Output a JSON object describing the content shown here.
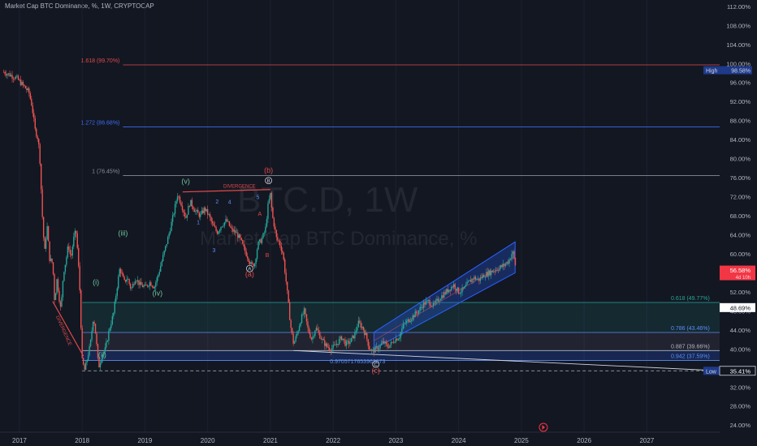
{
  "header": {
    "title": "Market Cap BTC Dominance, %, 1W, CRYPTOCAP"
  },
  "watermark": {
    "symbol": "BTC.D, 1W",
    "name": "Market Cap BTC Dominance, %"
  },
  "colors": {
    "background": "#131722",
    "up": "#26a69a",
    "down": "#ef5350",
    "blue": "#2962ff",
    "fib_red": "#e04a4a",
    "fib_blue": "#3c6ef0",
    "wave_green": "#6ec59a",
    "wave_blue": "#5b8ef5"
  },
  "chart_data": {
    "type": "candlestick",
    "symbol": "BTC.D",
    "interval": "1W",
    "ylim": [
      22.5,
      113
    ],
    "yticks": [
      24,
      28,
      32,
      36,
      40,
      44,
      48,
      52,
      56,
      60,
      64,
      68,
      72,
      76,
      80,
      84,
      88,
      92,
      96,
      100,
      104,
      108,
      112
    ],
    "xticks": [
      "2017",
      "2018",
      "2019",
      "2020",
      "2021",
      "2022",
      "2023",
      "2024",
      "2025",
      "2026",
      "2027"
    ],
    "price_path": [
      [
        2016.75,
        98.2
      ],
      [
        2016.95,
        97.0
      ],
      [
        2017.05,
        95.5
      ],
      [
        2017.15,
        94.0
      ],
      [
        2017.2,
        91.0
      ],
      [
        2017.25,
        86.0
      ],
      [
        2017.3,
        84.0
      ],
      [
        2017.33,
        79.0
      ],
      [
        2017.36,
        69.0
      ],
      [
        2017.4,
        60.0
      ],
      [
        2017.44,
        66.0
      ],
      [
        2017.48,
        59.0
      ],
      [
        2017.53,
        58.0
      ],
      [
        2017.56,
        50.0
      ],
      [
        2017.6,
        55.0
      ],
      [
        2017.62,
        52.0
      ],
      [
        2017.66,
        48.0
      ],
      [
        2017.7,
        56.0
      ],
      [
        2017.74,
        58.5
      ],
      [
        2017.78,
        62.0
      ],
      [
        2017.82,
        59.0
      ],
      [
        2017.86,
        63.0
      ],
      [
        2017.9,
        65.0
      ],
      [
        2017.93,
        60.0
      ],
      [
        2017.96,
        53.0
      ],
      [
        2018.0,
        37.5
      ],
      [
        2018.04,
        35.5
      ],
      [
        2018.08,
        38.0
      ],
      [
        2018.13,
        41.0
      ],
      [
        2018.18,
        47.0
      ],
      [
        2018.22,
        42.5
      ],
      [
        2018.26,
        36.0
      ],
      [
        2018.31,
        38.5
      ],
      [
        2018.37,
        40.0
      ],
      [
        2018.43,
        44.0
      ],
      [
        2018.5,
        47.5
      ],
      [
        2018.55,
        52.5
      ],
      [
        2018.6,
        57.0
      ],
      [
        2018.67,
        54.0
      ],
      [
        2018.72,
        55.0
      ],
      [
        2018.78,
        52.5
      ],
      [
        2018.85,
        55.0
      ],
      [
        2018.92,
        53.5
      ],
      [
        2019.0,
        53.0
      ],
      [
        2019.08,
        54.0
      ],
      [
        2019.15,
        53.0
      ],
      [
        2019.22,
        56.0
      ],
      [
        2019.3,
        60.0
      ],
      [
        2019.38,
        64.0
      ],
      [
        2019.45,
        68.0
      ],
      [
        2019.52,
        72.5
      ],
      [
        2019.58,
        70.5
      ],
      [
        2019.65,
        67.5
      ],
      [
        2019.72,
        71.0
      ],
      [
        2019.8,
        69.0
      ],
      [
        2019.88,
        68.0
      ],
      [
        2019.95,
        69.5
      ],
      [
        2020.02,
        68.0
      ],
      [
        2020.08,
        66.0
      ],
      [
        2020.15,
        64.5
      ],
      [
        2020.22,
        66.0
      ],
      [
        2020.3,
        67.0
      ],
      [
        2020.38,
        65.0
      ],
      [
        2020.45,
        64.5
      ],
      [
        2020.52,
        63.0
      ],
      [
        2020.58,
        61.0
      ],
      [
        2020.65,
        59.0
      ],
      [
        2020.7,
        57.5
      ],
      [
        2020.75,
        58.0
      ],
      [
        2020.8,
        62.0
      ],
      [
        2020.86,
        63.0
      ],
      [
        2020.92,
        65.0
      ],
      [
        2020.96,
        70.0
      ],
      [
        2021.0,
        72.5
      ],
      [
        2021.03,
        68.0
      ],
      [
        2021.06,
        66.0
      ],
      [
        2021.1,
        63.0
      ],
      [
        2021.14,
        62.5
      ],
      [
        2021.2,
        60.0
      ],
      [
        2021.26,
        53.0
      ],
      [
        2021.32,
        45.0
      ],
      [
        2021.37,
        41.0
      ],
      [
        2021.42,
        43.0
      ],
      [
        2021.48,
        46.0
      ],
      [
        2021.54,
        48.0
      ],
      [
        2021.6,
        44.0
      ],
      [
        2021.66,
        42.0
      ],
      [
        2021.72,
        44.5
      ],
      [
        2021.78,
        43.0
      ],
      [
        2021.84,
        41.5
      ],
      [
        2021.9,
        40.5
      ],
      [
        2021.96,
        40.0
      ],
      [
        2022.02,
        40.5
      ],
      [
        2022.08,
        41.5
      ],
      [
        2022.14,
        42.5
      ],
      [
        2022.2,
        41.0
      ],
      [
        2022.27,
        41.5
      ],
      [
        2022.34,
        43.0
      ],
      [
        2022.4,
        45.5
      ],
      [
        2022.47,
        44.5
      ],
      [
        2022.53,
        42.5
      ],
      [
        2022.58,
        40.0
      ],
      [
        2022.63,
        39.5
      ],
      [
        2022.68,
        40.0
      ],
      [
        2022.74,
        40.5
      ],
      [
        2022.8,
        41.5
      ],
      [
        2022.86,
        40.5
      ],
      [
        2022.92,
        41.0
      ],
      [
        2022.98,
        42.0
      ],
      [
        2023.05,
        42.5
      ],
      [
        2023.12,
        45.0
      ],
      [
        2023.2,
        46.0
      ],
      [
        2023.28,
        47.0
      ],
      [
        2023.36,
        48.0
      ],
      [
        2023.44,
        49.5
      ],
      [
        2023.52,
        50.0
      ],
      [
        2023.6,
        49.0
      ],
      [
        2023.68,
        50.5
      ],
      [
        2023.76,
        51.5
      ],
      [
        2023.84,
        52.5
      ],
      [
        2023.92,
        53.5
      ],
      [
        2024.0,
        52.0
      ],
      [
        2024.08,
        52.5
      ],
      [
        2024.16,
        54.0
      ],
      [
        2024.24,
        55.0
      ],
      [
        2024.32,
        54.5
      ],
      [
        2024.4,
        55.5
      ],
      [
        2024.48,
        56.0
      ],
      [
        2024.56,
        56.5
      ],
      [
        2024.64,
        57.0
      ],
      [
        2024.72,
        57.5
      ],
      [
        2024.8,
        58.5
      ],
      [
        2024.86,
        60.5
      ],
      [
        2024.9,
        58.0
      ],
      [
        2024.92,
        56.58
      ]
    ],
    "price_labels": [
      {
        "price": 56.58,
        "label": "56.58%",
        "sub": "4d 10h"
      },
      {
        "price": 48.69,
        "label": "48.69%"
      },
      {
        "price": 35.41,
        "label": "35.41%"
      }
    ],
    "high_low": [
      {
        "price": 98.58,
        "label": "High",
        "value": "98.58%"
      },
      {
        "price": 35.41,
        "label": "Low",
        "value": "35.41%"
      }
    ],
    "fib_levels": [
      {
        "price": 99.7,
        "label": "1.618 (99.70%)",
        "color": "#e04a4a",
        "x0": 2018.65
      },
      {
        "price": 86.68,
        "label": "1.272 (86.68%)",
        "color": "#3c6ef0",
        "x0": 2018.65
      },
      {
        "price": 76.45,
        "label": "1 (76.45%)",
        "color": "#8a8e99",
        "x0": 2018.65
      },
      {
        "price": 49.77,
        "label": "0.618 (49.77%)",
        "color": "#26a69a",
        "x0": 2018.0
      },
      {
        "price": 43.46,
        "label": "0.786 (43.46%)",
        "color": "#5b8ef5",
        "x0": 2018.0
      },
      {
        "price": 39.66,
        "label": "0.887 (39.66%)",
        "color": "#b2b5be",
        "x0": 2018.0
      },
      {
        "price": 37.59,
        "label": "0.942 (37.59%)",
        "color": "#5b8ef5",
        "x0": 2018.0
      }
    ],
    "channel": {
      "bottom": [
        [
          2022.65,
          40.0
        ],
        [
          2024.9,
          56.0
        ]
      ],
      "top": [
        [
          2022.65,
          43.5
        ],
        [
          2024.9,
          62.5
        ]
      ]
    },
    "annotations": {
      "wave_labels": [
        {
          "text": "(i)",
          "x": 2018.22,
          "price": 53.5,
          "color": "#6ec59a"
        },
        {
          "text": "(ii)",
          "x": 2018.32,
          "price": 38.3,
          "color": "#6ec59a"
        },
        {
          "text": "(iii)",
          "x": 2018.65,
          "price": 63.8,
          "color": "#6ec59a"
        },
        {
          "text": "(iv)",
          "x": 2019.2,
          "price": 51.2,
          "color": "#6ec59a"
        },
        {
          "text": "(v)",
          "x": 2019.65,
          "price": 74.7,
          "color": "#6ec59a"
        },
        {
          "text": "1",
          "x": 2019.85,
          "price": 66.2,
          "color": "#5b8ef5"
        },
        {
          "text": "2",
          "x": 2020.15,
          "price": 70.6,
          "color": "#5b8ef5"
        },
        {
          "text": "3",
          "x": 2020.1,
          "price": 60.3,
          "color": "#5b8ef5"
        },
        {
          "text": "4",
          "x": 2020.35,
          "price": 70.5,
          "color": "#5b8ef5"
        },
        {
          "text": "5",
          "x": 2020.8,
          "price": 71.5,
          "color": "#5b8ef5"
        },
        {
          "text": "A",
          "x": 2020.83,
          "price": 68.0,
          "color": "#e04a4a"
        },
        {
          "text": "B",
          "x": 2020.95,
          "price": 59.3,
          "color": "#e04a4a"
        },
        {
          "text": "(a)",
          "x": 2020.67,
          "price": 55.2,
          "color": "#e04a4a"
        },
        {
          "text": "(b)",
          "x": 2020.97,
          "price": 77.0,
          "color": "#e04a4a"
        },
        {
          "text": "(c)",
          "x": 2022.68,
          "price": 34.9,
          "color": "#e04a4a"
        }
      ],
      "circle_labels": [
        {
          "text": "A",
          "x": 2020.67,
          "price": 56.9
        },
        {
          "text": "B",
          "x": 2020.97,
          "price": 75.4
        },
        {
          "text": "C",
          "x": 2022.68,
          "price": 36.8
        }
      ],
      "divergence_top": "DIVERGENCE",
      "divergence_left": "DIVERGENCE",
      "midline_label": "0.9705717653963073"
    }
  }
}
